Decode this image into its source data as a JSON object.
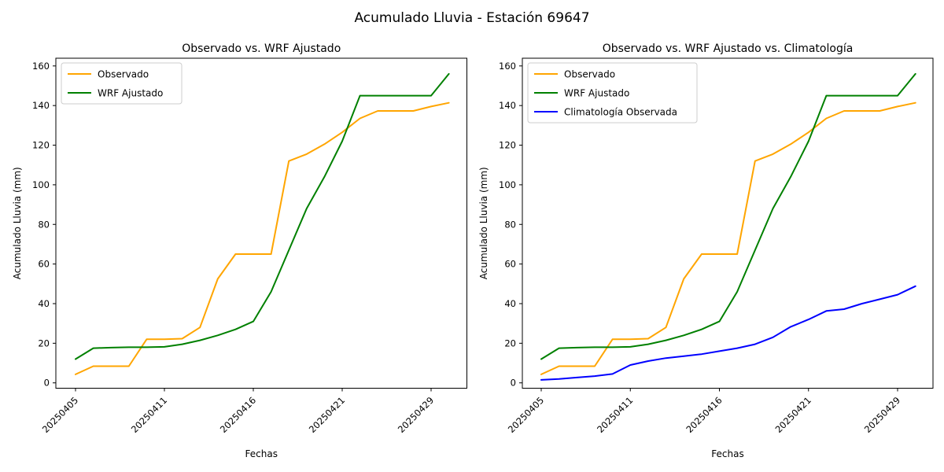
{
  "figure": {
    "suptitle": "Acumulado Lluvia - Estación 69647",
    "background": "#ffffff",
    "text_color": "#000000"
  },
  "chart_data": [
    {
      "type": "line",
      "title": "Observado vs. WRF Ajustado",
      "xlabel": "Fechas",
      "ylabel": "Acumulado Lluvia (mm)",
      "ylim": [
        0,
        160
      ],
      "yticks": [
        0,
        20,
        40,
        60,
        80,
        100,
        120,
        140,
        160
      ],
      "grid": false,
      "legend_position": "upper left",
      "x": [
        "20250405",
        "20250406",
        "20250407",
        "20250408",
        "20250409",
        "20250411",
        "20250412",
        "20250413",
        "20250414",
        "20250415",
        "20250416",
        "20250417",
        "20250418",
        "20250419",
        "20250420",
        "20250421",
        "20250422",
        "20250423",
        "20250425",
        "20250427",
        "20250429",
        "20250430"
      ],
      "xtick_indices": [
        0,
        5,
        10,
        15,
        20
      ],
      "xtick_labels": [
        "20250405",
        "20250411",
        "20250416",
        "20250421",
        "20250429"
      ],
      "xtick_rotation": 45,
      "series": [
        {
          "name": "Observado",
          "color": "#FFA500",
          "values": [
            4.3,
            8.4,
            8.4,
            8.4,
            22.0,
            22.0,
            22.3,
            28.0,
            52.5,
            65.0,
            65.0,
            65.0,
            112.0,
            115.5,
            120.5,
            126.5,
            133.5,
            137.3,
            137.3,
            137.3,
            139.5,
            141.4
          ]
        },
        {
          "name": "WRF Ajustado",
          "color": "#008000",
          "values": [
            12.0,
            17.5,
            17.8,
            18.0,
            18.0,
            18.2,
            19.5,
            21.5,
            24.0,
            27.0,
            31.0,
            46.0,
            67.0,
            88.0,
            104.0,
            122.0,
            145.0,
            145.0,
            145.0,
            145.0,
            145.0,
            156.0
          ]
        }
      ]
    },
    {
      "type": "line",
      "title": "Observado vs. WRF Ajustado vs. Climatología",
      "xlabel": "Fechas",
      "ylabel": "Acumulado Lluvia (mm)",
      "ylim": [
        0,
        160
      ],
      "yticks": [
        0,
        20,
        40,
        60,
        80,
        100,
        120,
        140,
        160
      ],
      "grid": false,
      "legend_position": "upper left",
      "x": [
        "20250405",
        "20250406",
        "20250407",
        "20250408",
        "20250409",
        "20250411",
        "20250412",
        "20250413",
        "20250414",
        "20250415",
        "20250416",
        "20250417",
        "20250418",
        "20250419",
        "20250420",
        "20250421",
        "20250422",
        "20250423",
        "20250425",
        "20250427",
        "20250429",
        "20250430"
      ],
      "xtick_indices": [
        0,
        5,
        10,
        15,
        20
      ],
      "xtick_labels": [
        "20250405",
        "20250411",
        "20250416",
        "20250421",
        "20250429"
      ],
      "xtick_rotation": 45,
      "series": [
        {
          "name": "Observado",
          "color": "#FFA500",
          "values": [
            4.3,
            8.4,
            8.4,
            8.4,
            22.0,
            22.0,
            22.3,
            28.0,
            52.5,
            65.0,
            65.0,
            65.0,
            112.0,
            115.5,
            120.5,
            126.5,
            133.5,
            137.3,
            137.3,
            137.3,
            139.5,
            141.4
          ]
        },
        {
          "name": "WRF Ajustado",
          "color": "#008000",
          "values": [
            12.0,
            17.5,
            17.8,
            18.0,
            18.0,
            18.2,
            19.5,
            21.5,
            24.0,
            27.0,
            31.0,
            46.0,
            67.0,
            88.0,
            104.0,
            122.0,
            145.0,
            145.0,
            145.0,
            145.0,
            145.0,
            156.0
          ]
        },
        {
          "name": "Climatología Observada",
          "color": "#0000FF",
          "values": [
            1.5,
            2.0,
            2.7,
            3.4,
            4.5,
            9.0,
            11.0,
            12.5,
            13.5,
            14.5,
            16.0,
            17.5,
            19.5,
            23.0,
            28.3,
            32.0,
            36.3,
            37.2,
            40.0,
            42.2,
            44.5,
            48.8
          ]
        }
      ]
    }
  ]
}
